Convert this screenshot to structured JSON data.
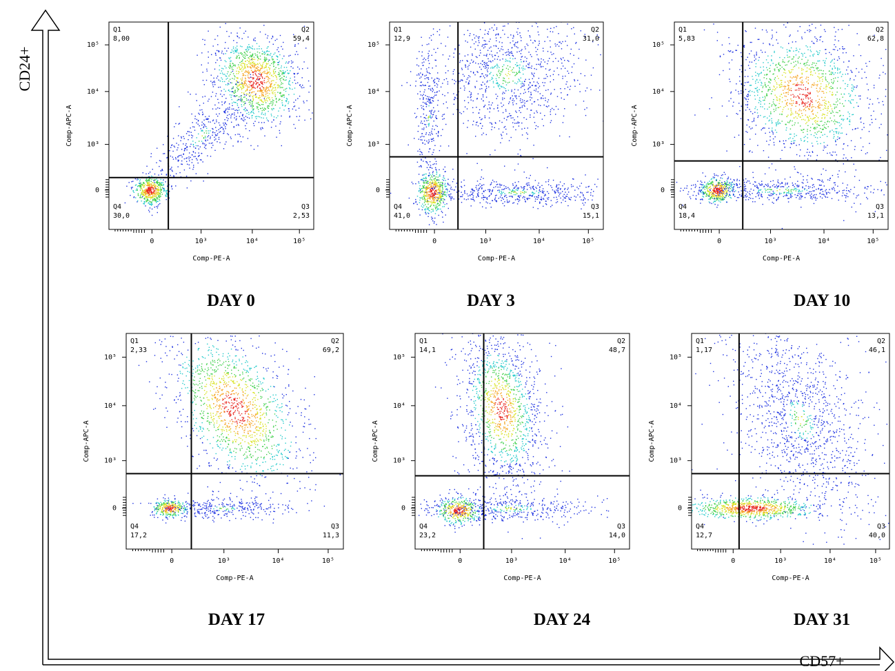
{
  "figure": {
    "y_axis_label": "CD24+",
    "x_axis_label": "CD57+",
    "panels": [
      {
        "title": "DAY 0",
        "x_label": "Comp-PE-A",
        "y_label": "Comp-APC-A",
        "quadrants": [
          {
            "name": "Q1",
            "value": "8,00"
          },
          {
            "name": "Q2",
            "value": "59,4"
          },
          {
            "name": "Q3",
            "value": "2,53"
          },
          {
            "name": "Q4",
            "value": "30,0"
          }
        ],
        "xticks": [
          "0",
          "10³",
          "10⁴",
          "10⁵"
        ],
        "yticks": [
          "0",
          "10³",
          "10⁴",
          "10⁵"
        ]
      },
      {
        "title": "DAY 3",
        "x_label": "Comp-PE-A",
        "y_label": "Comp-APC-A",
        "quadrants": [
          {
            "name": "Q1",
            "value": "12,9"
          },
          {
            "name": "Q2",
            "value": "31,0"
          },
          {
            "name": "Q3",
            "value": "15,1"
          },
          {
            "name": "Q4",
            "value": "41,0"
          }
        ],
        "xticks": [
          "0",
          "10³",
          "10⁴",
          "10⁵"
        ],
        "yticks": [
          "0",
          "10³",
          "10⁴",
          "10⁵"
        ]
      },
      {
        "title": "DAY 10",
        "x_label": "Comp-PE-A",
        "y_label": "Comp-APC-A",
        "quadrants": [
          {
            "name": "Q1",
            "value": "5,83"
          },
          {
            "name": "Q2",
            "value": "62,8"
          },
          {
            "name": "Q3",
            "value": "13,1"
          },
          {
            "name": "Q4",
            "value": "18,4"
          }
        ],
        "xticks": [
          "0",
          "10³",
          "10⁴",
          "10⁵"
        ],
        "yticks": [
          "0",
          "10³",
          "10⁴",
          "10⁵"
        ]
      },
      {
        "title": "DAY 17",
        "x_label": "Comp-PE-A",
        "y_label": "Comp-APC-A",
        "quadrants": [
          {
            "name": "Q1",
            "value": "2,33"
          },
          {
            "name": "Q2",
            "value": "69,2"
          },
          {
            "name": "Q3",
            "value": "11,3"
          },
          {
            "name": "Q4",
            "value": "17,2"
          }
        ],
        "xticks": [
          "0",
          "10³",
          "10⁴",
          "10⁵"
        ],
        "yticks": [
          "0",
          "10³",
          "10⁴",
          "10⁵"
        ]
      },
      {
        "title": "DAY 24",
        "x_label": "Comp-PE-A",
        "y_label": "Comp-APC-A",
        "quadrants": [
          {
            "name": "Q1",
            "value": "14,1"
          },
          {
            "name": "Q2",
            "value": "48,7"
          },
          {
            "name": "Q3",
            "value": "14,0"
          },
          {
            "name": "Q4",
            "value": "23,2"
          }
        ],
        "xticks": [
          "0",
          "10³",
          "10⁴",
          "10⁵"
        ],
        "yticks": [
          "0",
          "10³",
          "10⁴",
          "10⁵"
        ]
      },
      {
        "title": "DAY 31",
        "x_label": "Comp-PE-A",
        "y_label": "Comp-APC-A",
        "quadrants": [
          {
            "name": "Q1",
            "value": "1,17"
          },
          {
            "name": "Q2",
            "value": "46,1"
          },
          {
            "name": "Q3",
            "value": "40,0"
          },
          {
            "name": "Q4",
            "value": "12,7"
          }
        ],
        "xticks": [
          "0",
          "10³",
          "10⁴",
          "10⁵"
        ],
        "yticks": [
          "0",
          "10³",
          "10⁴",
          "10⁵"
        ]
      }
    ]
  }
}
